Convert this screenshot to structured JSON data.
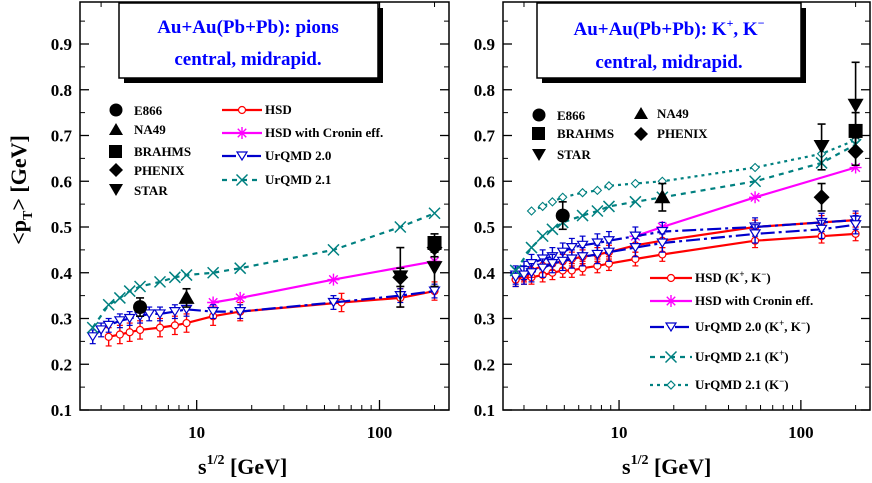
{
  "chart_data": [
    {
      "type": "scatter",
      "panel": "left",
      "title_lines": [
        "Au+Au(Pb+Pb):  pions",
        "central, midrapid."
      ],
      "xlabel": "s^1/2 [GeV]",
      "ylabel": "<p_T> [GeV]",
      "xscale": "log",
      "xlim": [
        2.3,
        240
      ],
      "ylim": [
        0.1,
        0.95
      ],
      "x_tick_labels": [
        "10",
        "100"
      ],
      "y_tick_labels": [
        "0.1",
        "0.2",
        "0.3",
        "0.4",
        "0.5",
        "0.6",
        "0.7",
        "0.8",
        "0.9"
      ],
      "experiments": [
        "E866",
        "NA49",
        "BRAHMS",
        "PHENIX",
        "STAR"
      ],
      "models": [
        "HSD",
        "HSD with Cronin eff.",
        "UrQMD 2.0",
        "UrQMD 2.1"
      ],
      "data_points": [
        {
          "exp": "E866",
          "x": 4.9,
          "y": 0.325,
          "err": 0.02
        },
        {
          "exp": "NA49",
          "x": 8.8,
          "y": 0.345,
          "err": 0.02
        },
        {
          "exp": "BRAHMS",
          "x": 200,
          "y": 0.465,
          "err": 0.02
        },
        {
          "exp": "PHENIX",
          "x": 130,
          "y": 0.39,
          "err": 0.02
        },
        {
          "exp": "PHENIX",
          "x": 200,
          "y": 0.455,
          "err": 0.02
        },
        {
          "exp": "STAR",
          "x": 130,
          "y": 0.39,
          "err": 0.065
        },
        {
          "exp": "STAR",
          "x": 200,
          "y": 0.41,
          "err": 0.04
        }
      ],
      "series": [
        {
          "name": "HSD",
          "color": "#ff0000",
          "marker": "circle-open",
          "dash": "",
          "x": [
            3.3,
            3.8,
            4.3,
            4.9,
            6.3,
            7.6,
            8.8,
            12.3,
            17.3,
            62,
            130,
            200
          ],
          "y": [
            0.26,
            0.265,
            0.27,
            0.275,
            0.28,
            0.285,
            0.29,
            0.305,
            0.315,
            0.335,
            0.345,
            0.36
          ],
          "err": 0.02
        },
        {
          "name": "HSD with Cronin eff.",
          "color": "#ff00ff",
          "marker": "star",
          "dash": "",
          "x": [
            12.3,
            17.3,
            56,
            200
          ],
          "y": [
            0.335,
            0.345,
            0.385,
            0.425
          ]
        },
        {
          "name": "UrQMD 2.0",
          "color": "#0000cc",
          "marker": "triangle-down-open",
          "dash": "14 4 3 4",
          "x": [
            2.7,
            3.0,
            3.3,
            3.8,
            4.3,
            4.9,
            5.5,
            6.3,
            7.6,
            8.8,
            12.3,
            17.3,
            56,
            130,
            200
          ],
          "y": [
            0.26,
            0.275,
            0.285,
            0.295,
            0.3,
            0.305,
            0.31,
            0.31,
            0.315,
            0.32,
            0.315,
            0.315,
            0.335,
            0.35,
            0.36
          ],
          "err": 0.015
        },
        {
          "name": "UrQMD 2.1",
          "color": "#008080",
          "marker": "x",
          "dash": "5 5",
          "x": [
            2.7,
            3.3,
            3.8,
            4.3,
            4.9,
            6.3,
            7.6,
            8.8,
            12.3,
            17.3,
            56,
            130,
            200
          ],
          "y": [
            0.28,
            0.33,
            0.345,
            0.36,
            0.37,
            0.38,
            0.39,
            0.395,
            0.4,
            0.41,
            0.45,
            0.5,
            0.53
          ]
        }
      ]
    },
    {
      "type": "scatter",
      "panel": "right",
      "title_lines": [
        "Au+Au(Pb+Pb):  K+, K−",
        "central, midrapid."
      ],
      "xlabel": "s^1/2 [GeV]",
      "ylabel": "",
      "xscale": "log",
      "xlim": [
        2.3,
        240
      ],
      "ylim": [
        0.1,
        0.95
      ],
      "x_tick_labels": [
        "10",
        "100"
      ],
      "y_tick_labels": [
        "0.1",
        "0.2",
        "0.3",
        "0.4",
        "0.5",
        "0.6",
        "0.7",
        "0.8",
        "0.9"
      ],
      "experiments": [
        "E866",
        "NA49",
        "BRAHMS",
        "PHENIX",
        "STAR"
      ],
      "models": [
        "HSD (K+, K−)",
        "HSD with Cronin eff.",
        "UrQMD 2.0 (K+, K−)",
        "UrQMD 2.1 (K+)",
        "UrQMD 2.1 (K−)"
      ],
      "data_points": [
        {
          "exp": "E866",
          "x": 4.9,
          "y": 0.525,
          "err": 0.03
        },
        {
          "exp": "NA49",
          "x": 17.3,
          "y": 0.565,
          "err": 0.03
        },
        {
          "exp": "BRAHMS",
          "x": 200,
          "y": 0.71,
          "err": 0.04
        },
        {
          "exp": "PHENIX",
          "x": 130,
          "y": 0.565,
          "err": 0.03
        },
        {
          "exp": "PHENIX",
          "x": 200,
          "y": 0.665,
          "err": 0.03
        },
        {
          "exp": "STAR",
          "x": 130,
          "y": 0.675,
          "err": 0.05
        },
        {
          "exp": "STAR",
          "x": 200,
          "y": 0.765,
          "err": 0.095
        }
      ],
      "series": [
        {
          "name": "HSD (K+, K−)",
          "color": "#ff0000",
          "marker": "circle-open",
          "dash": "",
          "x": [
            2.7,
            3.0,
            3.3,
            3.8,
            4.3,
            4.9,
            5.5,
            6.3,
            7.6,
            8.8,
            12.3,
            17.3,
            56,
            130,
            200
          ],
          "y": [
            0.385,
            0.39,
            0.39,
            0.395,
            0.4,
            0.405,
            0.405,
            0.41,
            0.415,
            0.42,
            0.43,
            0.44,
            0.47,
            0.48,
            0.485
          ],
          "err": 0.015
        },
        {
          "name": "HSD (K+, K−)",
          "color": "#ff0000",
          "marker": "circle-open",
          "dash": "",
          "x": [
            2.7,
            3.0,
            3.3,
            3.8,
            4.3,
            4.9,
            5.5,
            6.3,
            7.6,
            8.8,
            12.3,
            17.3,
            56,
            130,
            200
          ],
          "y": [
            0.385,
            0.395,
            0.405,
            0.415,
            0.42,
            0.425,
            0.43,
            0.435,
            0.44,
            0.445,
            0.46,
            0.47,
            0.5,
            0.51,
            0.515
          ],
          "err": 0.015
        },
        {
          "name": "HSD with Cronin eff.",
          "color": "#ff00ff",
          "marker": "star",
          "dash": "",
          "x": [
            12.3,
            17.3,
            56,
            200
          ],
          "y": [
            0.48,
            0.5,
            0.565,
            0.63
          ]
        },
        {
          "name": "UrQMD 2.0 (K+, K−)",
          "color": "#0000cc",
          "marker": "triangle-down-open",
          "dash": "14 4 3 4",
          "x": [
            2.7,
            3.0,
            3.3,
            3.8,
            4.3,
            4.9,
            5.5,
            6.3,
            7.6,
            8.8,
            12.3,
            17.3,
            56,
            130,
            200
          ],
          "y": [
            0.395,
            0.405,
            0.42,
            0.43,
            0.435,
            0.445,
            0.455,
            0.46,
            0.465,
            0.47,
            0.48,
            0.49,
            0.5,
            0.51,
            0.515
          ],
          "err": 0.02
        },
        {
          "name": "UrQMD 2.0 (K+, K−)",
          "color": "#0000cc",
          "marker": "triangle-down-open",
          "dash": "14 4 3 4",
          "x": [
            2.7,
            3.0,
            3.3,
            3.8,
            4.3,
            4.9,
            5.5,
            6.3,
            7.6,
            8.8,
            12.3,
            17.3,
            56,
            130,
            200
          ],
          "y": [
            0.39,
            0.395,
            0.4,
            0.41,
            0.42,
            0.425,
            0.43,
            0.435,
            0.44,
            0.445,
            0.455,
            0.465,
            0.485,
            0.495,
            0.505
          ],
          "err": 0.02
        },
        {
          "name": "UrQMD 2.1 (K+)",
          "color": "#008080",
          "marker": "x",
          "dash": "5 5",
          "x": [
            2.7,
            3.3,
            3.8,
            4.3,
            4.9,
            6.3,
            7.6,
            8.8,
            12.3,
            17.3,
            56,
            130,
            200
          ],
          "y": [
            0.405,
            0.455,
            0.48,
            0.495,
            0.51,
            0.525,
            0.535,
            0.545,
            0.555,
            0.565,
            0.6,
            0.64,
            0.68
          ]
        },
        {
          "name": "UrQMD 2.1 (K−)",
          "color": "#008080",
          "marker": "diamond-open",
          "dash": "3 4",
          "x": [
            3.3,
            3.8,
            4.3,
            4.9,
            6.3,
            7.6,
            8.8,
            12.3,
            17.3,
            56,
            130,
            200
          ],
          "y": [
            0.535,
            0.545,
            0.555,
            0.565,
            0.575,
            0.58,
            0.59,
            0.595,
            0.6,
            0.63,
            0.66,
            0.69
          ]
        }
      ]
    }
  ]
}
